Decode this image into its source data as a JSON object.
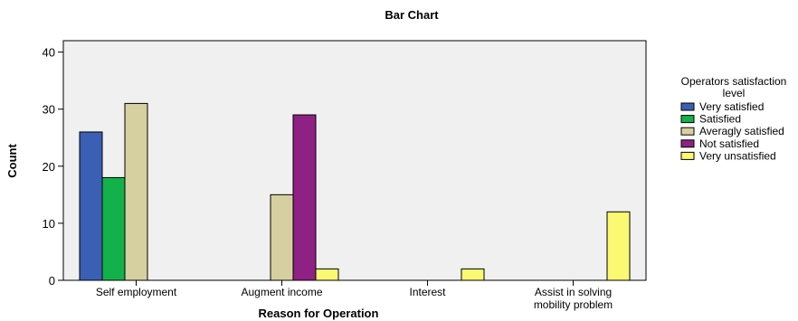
{
  "chart_data": {
    "type": "bar",
    "title": "Bar Chart",
    "xlabel": "Reason for Operation",
    "ylabel": "Count",
    "ylim": [
      0,
      42
    ],
    "yticks": [
      0,
      10,
      20,
      30,
      40
    ],
    "grid": false,
    "legend_position": "right",
    "legend_title_lines": [
      "Operators satisfaction",
      "level"
    ],
    "category_lines": [
      [
        "Self employment"
      ],
      [
        "Augment income"
      ],
      [
        "Interest"
      ],
      [
        "Assist in solving",
        "mobility problem"
      ]
    ],
    "categories": [
      "Self employment",
      "Augment income",
      "Interest",
      "Assist in solving mobility problem"
    ],
    "series": [
      {
        "name": "Very satisfied",
        "color": "#3b5fb5",
        "values": [
          26,
          0,
          0,
          0
        ]
      },
      {
        "name": "Satisfied",
        "color": "#13b14a",
        "values": [
          18,
          0,
          0,
          0
        ]
      },
      {
        "name": "Averagly satisfied",
        "color": "#d6cfa0",
        "values": [
          31,
          15,
          0,
          0
        ]
      },
      {
        "name": "Not satisfied",
        "color": "#8e2183",
        "values": [
          0,
          29,
          0,
          0
        ]
      },
      {
        "name": "Very unsatisfied",
        "color": "#fbf872",
        "values": [
          0,
          2,
          2,
          12
        ]
      }
    ],
    "plot_background": "#f0f0f0"
  }
}
